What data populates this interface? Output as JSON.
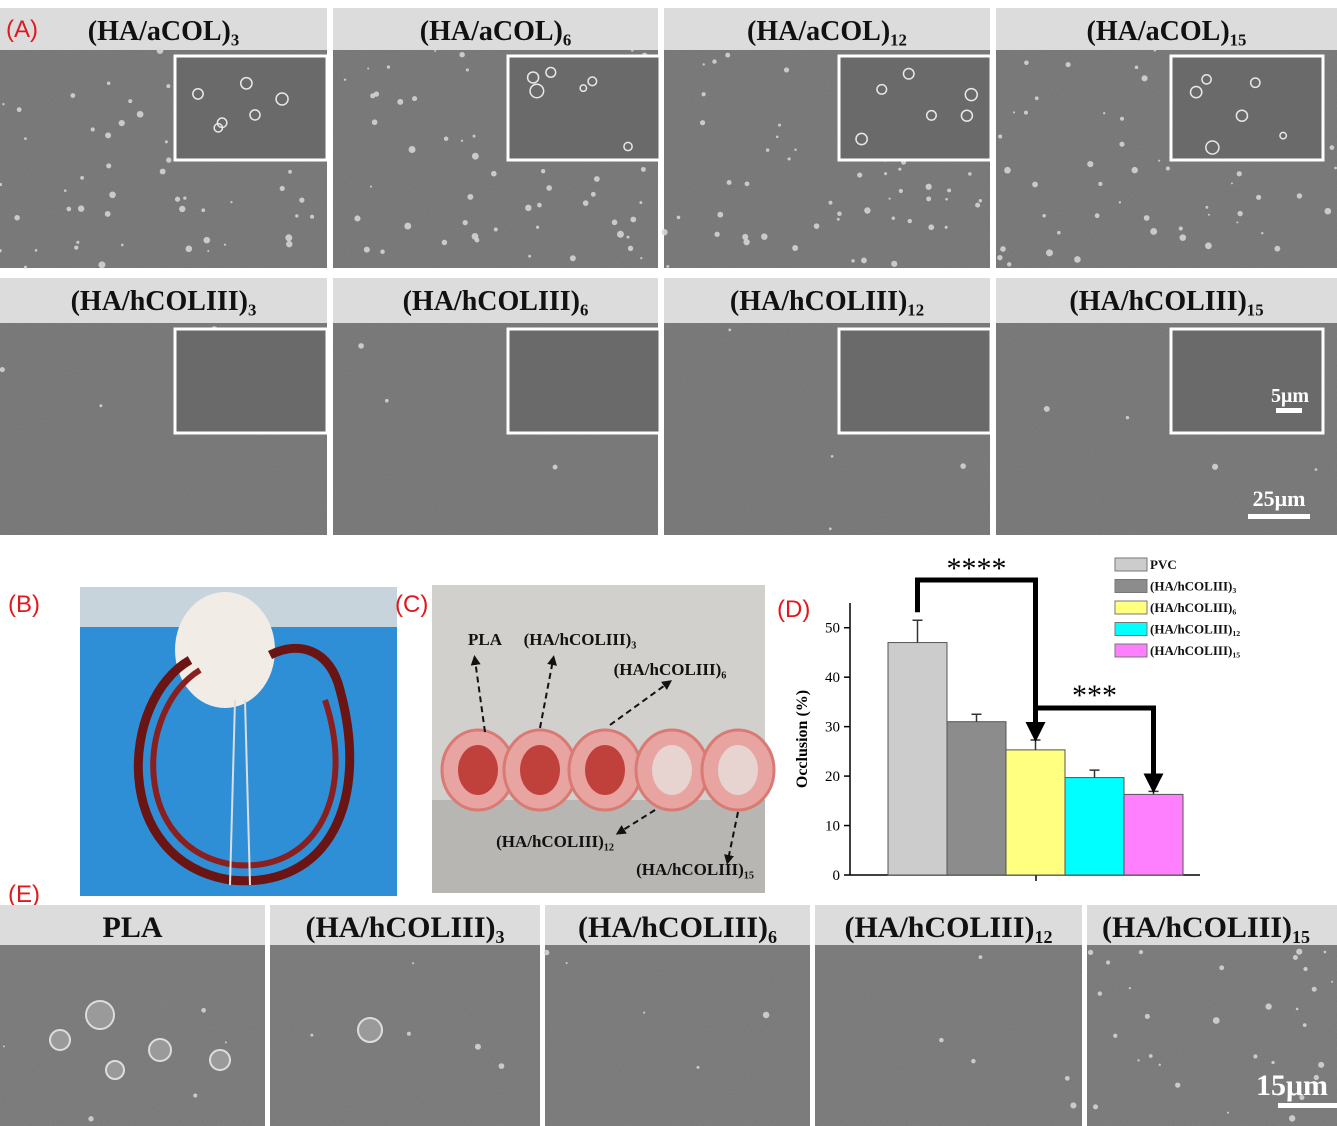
{
  "panel_labels": [
    "(A)",
    "(B)",
    "(C)",
    "(D)",
    "(E)"
  ],
  "A": {
    "titles": [
      {
        "main": "(HA/aCOL)",
        "sub": "3"
      },
      {
        "main": "(HA/aCOL)",
        "sub": "6"
      },
      {
        "main": "(HA/aCOL)",
        "sub": "12"
      },
      {
        "main": "(HA/aCOL)",
        "sub": "15"
      },
      {
        "main": "(HA/hCOLIII)",
        "sub": "3"
      },
      {
        "main": "(HA/hCOLIII)",
        "sub": "6"
      },
      {
        "main": "(HA/hCOLIII)",
        "sub": "12"
      },
      {
        "main": "(HA/hCOLIII)",
        "sub": "15"
      }
    ],
    "scale_bars": [
      "5μm",
      "25μm"
    ]
  },
  "C": {
    "annotations": [
      {
        "main": "PLA"
      },
      {
        "main": "(HA/hCOLIII)",
        "sub": "3"
      },
      {
        "main": "(HA/hCOLIII)",
        "sub": "6"
      },
      {
        "main": "(HA/hCOLIII)",
        "sub": "12"
      },
      {
        "main": "(HA/hCOLIII)",
        "sub": "15"
      }
    ]
  },
  "chart_data": {
    "type": "bar",
    "ylabel": "Occlusion (%)",
    "legend": [
      {
        "name": "PVC"
      },
      {
        "name": "(HA/hCOLIII)",
        "sub": "3"
      },
      {
        "name": "(HA/hCOLIII)",
        "sub": "6"
      },
      {
        "name": "(HA/hCOLIII)",
        "sub": "12"
      },
      {
        "name": "(HA/hCOLIII)",
        "sub": "15"
      }
    ],
    "values": [
      47,
      31,
      25.3,
      19.7,
      16.3
    ],
    "errors": [
      4.5,
      1.5,
      2,
      1.5,
      0.6
    ],
    "colors": [
      "#cccccc",
      "#8c8c8c",
      "#ffff80",
      "#00ffff",
      "#ff80ff"
    ],
    "ylim": [
      0,
      55
    ],
    "yticks": [
      0,
      10,
      20,
      30,
      40,
      50
    ],
    "annotations": [
      "****",
      "***"
    ]
  },
  "E": {
    "titles": [
      {
        "main": "PLA"
      },
      {
        "main": "(HA/hCOLIII)",
        "sub": "3"
      },
      {
        "main": "(HA/hCOLIII)",
        "sub": "6"
      },
      {
        "main": "(HA/hCOLIII)",
        "sub": "12"
      },
      {
        "main": "(HA/hCOLIII)",
        "sub": "15"
      }
    ],
    "scale_bar": "15μm"
  }
}
